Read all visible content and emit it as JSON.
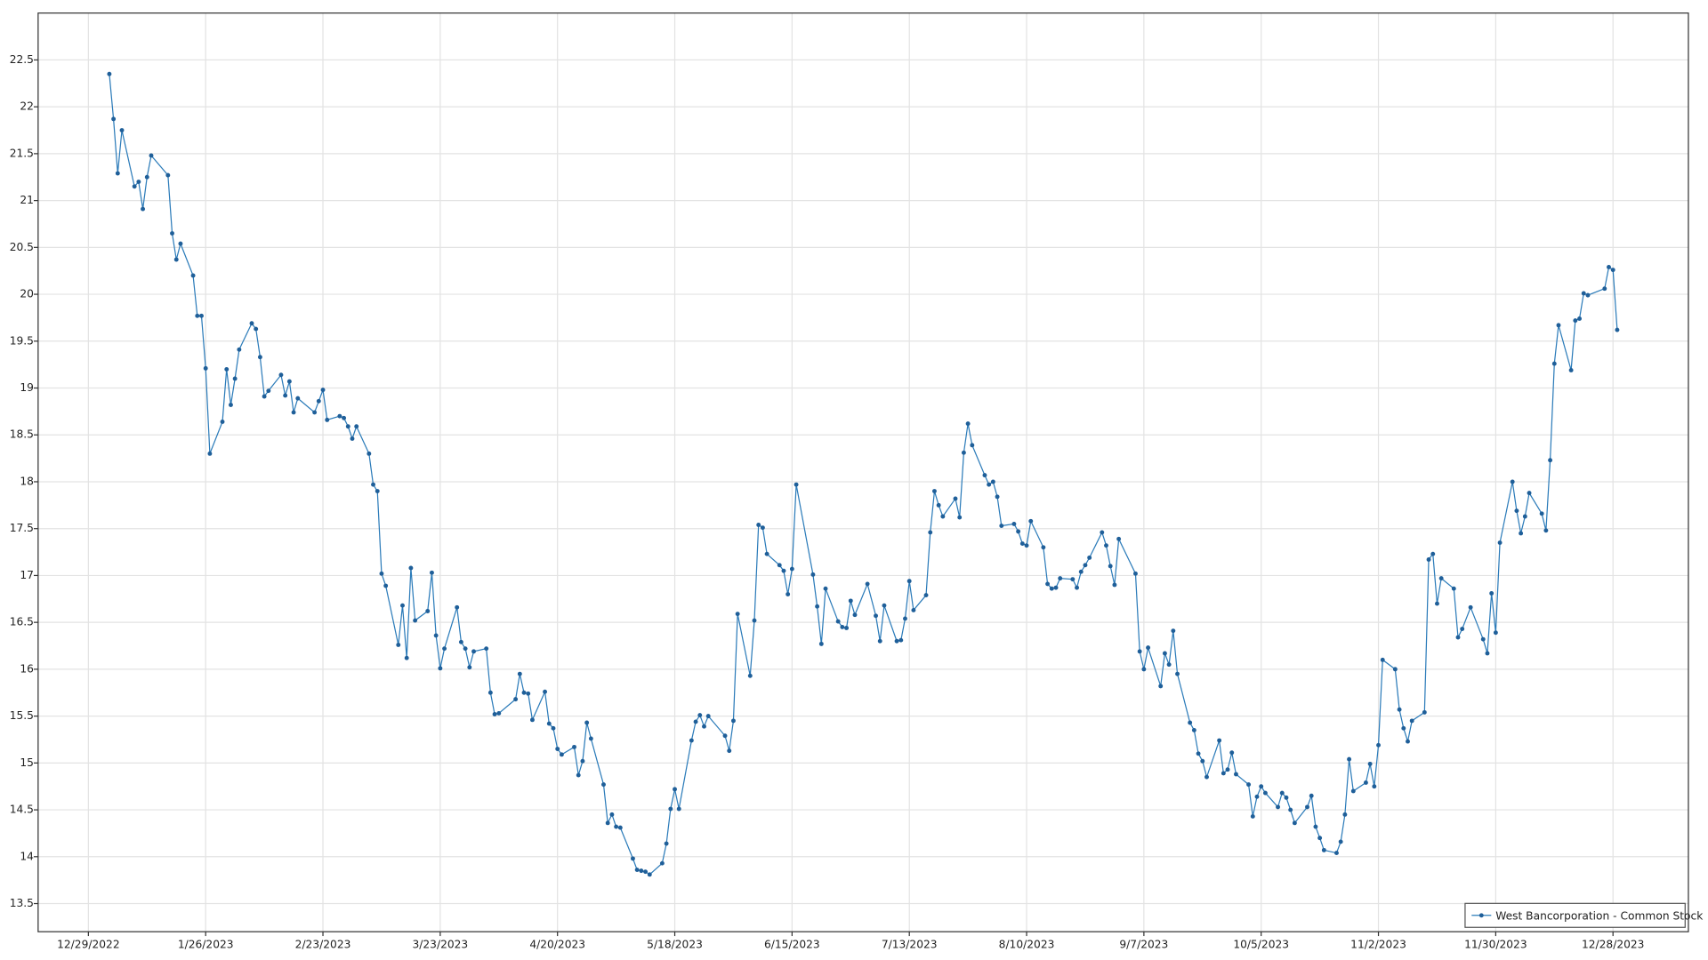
{
  "chart_data": {
    "type": "line",
    "x": [
      "1/3/2023",
      "1/4/2023",
      "1/5/2023",
      "1/6/2023",
      "1/9/2023",
      "1/10/2023",
      "1/11/2023",
      "1/12/2023",
      "1/13/2023",
      "1/17/2023",
      "1/18/2023",
      "1/19/2023",
      "1/20/2023",
      "1/23/2023",
      "1/24/2023",
      "1/25/2023",
      "1/26/2023",
      "1/27/2023",
      "1/30/2023",
      "1/31/2023",
      "2/1/2023",
      "2/2/2023",
      "2/3/2023",
      "2/6/2023",
      "2/7/2023",
      "2/8/2023",
      "2/9/2023",
      "2/10/2023",
      "2/13/2023",
      "2/14/2023",
      "2/15/2023",
      "2/16/2023",
      "2/17/2023",
      "2/21/2023",
      "2/22/2023",
      "2/23/2023",
      "2/24/2023",
      "2/27/2023",
      "2/28/2023",
      "3/1/2023",
      "3/2/2023",
      "3/3/2023",
      "3/6/2023",
      "3/7/2023",
      "3/8/2023",
      "3/9/2023",
      "3/10/2023",
      "3/13/2023",
      "3/14/2023",
      "3/15/2023",
      "3/16/2023",
      "3/17/2023",
      "3/20/2023",
      "3/21/2023",
      "3/22/2023",
      "3/23/2023",
      "3/24/2023",
      "3/27/2023",
      "3/28/2023",
      "3/29/2023",
      "3/30/2023",
      "3/31/2023",
      "4/3/2023",
      "4/4/2023",
      "4/5/2023",
      "4/6/2023",
      "4/10/2023",
      "4/11/2023",
      "4/12/2023",
      "4/13/2023",
      "4/14/2023",
      "4/17/2023",
      "4/18/2023",
      "4/19/2023",
      "4/20/2023",
      "4/21/2023",
      "4/24/2023",
      "4/25/2023",
      "4/26/2023",
      "4/27/2023",
      "4/28/2023",
      "5/1/2023",
      "5/2/2023",
      "5/3/2023",
      "5/4/2023",
      "5/5/2023",
      "5/8/2023",
      "5/9/2023",
      "5/10/2023",
      "5/11/2023",
      "5/12/2023",
      "5/15/2023",
      "5/16/2023",
      "5/17/2023",
      "5/18/2023",
      "5/19/2023",
      "5/22/2023",
      "5/23/2023",
      "5/24/2023",
      "5/25/2023",
      "5/26/2023",
      "5/30/2023",
      "5/31/2023",
      "6/1/2023",
      "6/2/2023",
      "6/5/2023",
      "6/6/2023",
      "6/7/2023",
      "6/8/2023",
      "6/9/2023",
      "6/12/2023",
      "6/13/2023",
      "6/14/2023",
      "6/15/2023",
      "6/16/2023",
      "6/20/2023",
      "6/21/2023",
      "6/22/2023",
      "6/23/2023",
      "6/26/2023",
      "6/27/2023",
      "6/28/2023",
      "6/29/2023",
      "6/30/2023",
      "7/3/2023",
      "7/5/2023",
      "7/6/2023",
      "7/7/2023",
      "7/10/2023",
      "7/11/2023",
      "7/12/2023",
      "7/13/2023",
      "7/14/2023",
      "7/17/2023",
      "7/18/2023",
      "7/19/2023",
      "7/20/2023",
      "7/21/2023",
      "7/24/2023",
      "7/25/2023",
      "7/26/2023",
      "7/27/2023",
      "7/28/2023",
      "7/31/2023",
      "8/1/2023",
      "8/2/2023",
      "8/3/2023",
      "8/4/2023",
      "8/7/2023",
      "8/8/2023",
      "8/9/2023",
      "8/10/2023",
      "8/11/2023",
      "8/14/2023",
      "8/15/2023",
      "8/16/2023",
      "8/17/2023",
      "8/18/2023",
      "8/21/2023",
      "8/22/2023",
      "8/23/2023",
      "8/24/2023",
      "8/25/2023",
      "8/28/2023",
      "8/29/2023",
      "8/30/2023",
      "8/31/2023",
      "9/1/2023",
      "9/5/2023",
      "9/6/2023",
      "9/7/2023",
      "9/8/2023",
      "9/11/2023",
      "9/12/2023",
      "9/13/2023",
      "9/14/2023",
      "9/15/2023",
      "9/18/2023",
      "9/19/2023",
      "9/20/2023",
      "9/21/2023",
      "9/22/2023",
      "9/25/2023",
      "9/26/2023",
      "9/27/2023",
      "9/28/2023",
      "9/29/2023",
      "10/2/2023",
      "10/3/2023",
      "10/4/2023",
      "10/5/2023",
      "10/6/2023",
      "10/9/2023",
      "10/10/2023",
      "10/11/2023",
      "10/12/2023",
      "10/13/2023",
      "10/16/2023",
      "10/17/2023",
      "10/18/2023",
      "10/19/2023",
      "10/20/2023",
      "10/23/2023",
      "10/24/2023",
      "10/25/2023",
      "10/26/2023",
      "10/27/2023",
      "10/30/2023",
      "10/31/2023",
      "11/1/2023",
      "11/2/2023",
      "11/3/2023",
      "11/6/2023",
      "11/7/2023",
      "11/8/2023",
      "11/9/2023",
      "11/10/2023",
      "11/13/2023",
      "11/14/2023",
      "11/15/2023",
      "11/16/2023",
      "11/17/2023",
      "11/20/2023",
      "11/21/2023",
      "11/22/2023",
      "11/24/2023",
      "11/27/2023",
      "11/28/2023",
      "11/29/2023",
      "11/30/2023",
      "12/1/2023",
      "12/4/2023",
      "12/5/2023",
      "12/6/2023",
      "12/7/2023",
      "12/8/2023",
      "12/11/2023",
      "12/12/2023",
      "12/13/2023",
      "12/14/2023",
      "12/15/2023",
      "12/18/2023",
      "12/19/2023",
      "12/20/2023",
      "12/21/2023",
      "12/22/2023",
      "12/26/2023",
      "12/27/2023",
      "12/28/2023",
      "12/29/2023"
    ],
    "series": [
      {
        "name": "West Bancorporation - Common Stock",
        "color": "#2b7bb9",
        "marker_color": "#1f5f99",
        "values": [
          22.35,
          21.87,
          21.29,
          21.75,
          21.15,
          21.2,
          20.91,
          21.25,
          21.48,
          21.27,
          20.65,
          20.37,
          20.54,
          20.2,
          19.77,
          19.77,
          19.21,
          18.3,
          18.64,
          19.2,
          18.82,
          19.1,
          19.41,
          19.69,
          19.63,
          19.33,
          18.91,
          18.97,
          19.14,
          18.92,
          19.07,
          18.74,
          18.89,
          18.74,
          18.86,
          18.98,
          18.66,
          18.7,
          18.68,
          18.59,
          18.46,
          18.59,
          18.3,
          17.97,
          17.9,
          17.02,
          16.89,
          16.26,
          16.68,
          16.12,
          17.08,
          16.52,
          16.62,
          17.03,
          16.36,
          16.01,
          16.22,
          16.66,
          16.29,
          16.22,
          16.02,
          16.19,
          16.22,
          15.75,
          15.52,
          15.53,
          15.68,
          15.95,
          15.75,
          15.74,
          15.46,
          15.76,
          15.42,
          15.37,
          15.15,
          15.09,
          15.17,
          14.87,
          15.02,
          15.43,
          15.26,
          14.77,
          14.36,
          14.45,
          14.32,
          14.31,
          13.98,
          13.86,
          13.85,
          13.84,
          13.81,
          13.93,
          14.14,
          14.51,
          14.72,
          14.51,
          15.24,
          15.44,
          15.51,
          15.39,
          15.5,
          15.29,
          15.13,
          15.45,
          16.59,
          15.93,
          16.52,
          17.54,
          17.51,
          17.23,
          17.11,
          17.05,
          16.8,
          17.07,
          17.97,
          17.01,
          16.67,
          16.27,
          16.86,
          16.51,
          16.45,
          16.44,
          16.73,
          16.58,
          16.91,
          16.57,
          16.3,
          16.68,
          16.3,
          16.31,
          16.54,
          16.94,
          16.63,
          16.79,
          17.46,
          17.9,
          17.75,
          17.63,
          17.82,
          17.62,
          18.31,
          18.62,
          18.39,
          18.07,
          17.97,
          18.0,
          17.84,
          17.53,
          17.55,
          17.47,
          17.34,
          17.32,
          17.58,
          17.3,
          16.91,
          16.86,
          16.87,
          16.97,
          16.96,
          16.87,
          17.04,
          17.11,
          17.19,
          17.46,
          17.32,
          17.1,
          16.9,
          17.39,
          17.02,
          16.19,
          16.0,
          16.23,
          15.82,
          16.17,
          16.05,
          16.41,
          15.95,
          15.43,
          15.35,
          15.1,
          15.02,
          14.85,
          15.24,
          14.89,
          14.93,
          15.11,
          14.88,
          14.77,
          14.43,
          14.64,
          14.75,
          14.68,
          14.53,
          14.68,
          14.63,
          14.5,
          14.36,
          14.53,
          14.65,
          14.32,
          14.2,
          14.07,
          14.04,
          14.16,
          14.45,
          15.04,
          14.7,
          14.79,
          14.99,
          14.75,
          15.19,
          16.1,
          16.0,
          15.57,
          15.37,
          15.23,
          15.45,
          15.54,
          17.17,
          17.23,
          16.7,
          16.97,
          16.86,
          16.34,
          16.43,
          16.66,
          16.32,
          16.17,
          16.81,
          16.39,
          17.35,
          18.0,
          17.69,
          17.45,
          17.63,
          17.88,
          17.66,
          17.48,
          18.23,
          19.26,
          19.67,
          19.19,
          19.72,
          19.74,
          20.01,
          19.99,
          20.06,
          20.29,
          20.26,
          19.62
        ]
      }
    ],
    "xlim": [
      "12/17/2022",
      "1/15/2024"
    ],
    "xticks": [
      "12/29/2022",
      "1/26/2023",
      "2/23/2023",
      "3/23/2023",
      "4/20/2023",
      "5/18/2023",
      "6/15/2023",
      "7/13/2023",
      "8/10/2023",
      "9/7/2023",
      "10/5/2023",
      "11/2/2023",
      "11/30/2023",
      "12/28/2023"
    ],
    "ylim": [
      13.2,
      23.0
    ],
    "yticks": [
      13.5,
      14,
      14.5,
      15,
      15.5,
      16,
      16.5,
      17,
      17.5,
      18,
      18.5,
      19,
      19.5,
      20,
      20.5,
      21,
      21.5,
      22,
      22.5
    ],
    "grid": true,
    "legend": "lower right"
  }
}
